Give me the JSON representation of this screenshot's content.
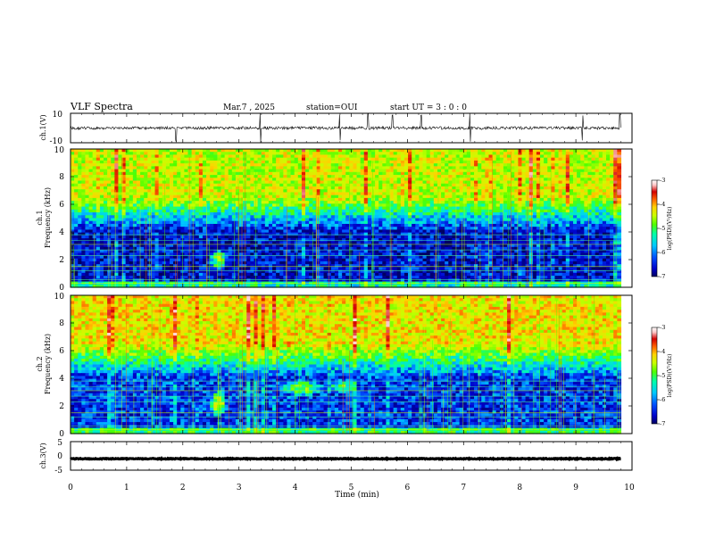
{
  "header": {
    "title": "VLF Spectra",
    "date": "Mar.7 , 2025",
    "station": "station=OUI",
    "start": "start UT =  3 : 0 : 0"
  },
  "chart_data": {
    "type": "spectrogram",
    "x_axis": {
      "label": "Time (min)",
      "range": [
        0,
        10
      ],
      "ticks": [
        0,
        1,
        2,
        3,
        4,
        5,
        6,
        7,
        8,
        9,
        10
      ],
      "tick_labels": [
        "0",
        "1",
        "2",
        "3",
        "4",
        "5",
        "6",
        "7",
        "8",
        "9",
        "10"
      ],
      "data_end": 9.8
    },
    "panels": [
      {
        "id": "ch1-waveform",
        "kind": "waveform",
        "ylabel": "ch.1(V)",
        "ylim": [
          -10,
          10
        ],
        "tick_labels": [
          "10",
          "-10"
        ],
        "baseline": 0,
        "noise_amplitude": 1.0,
        "spike_times": [
          1.88,
          3.38,
          4.8,
          5.3,
          5.73,
          6.25,
          7.12,
          9.12,
          9.78
        ],
        "spike_amplitude": 9
      },
      {
        "id": "ch1-spectrogram",
        "kind": "spectrogram",
        "ylabel_1": "ch.1",
        "ylabel_2": "Frequency (kHz)",
        "ylim": [
          0,
          10
        ],
        "yticks": [
          0,
          2,
          4,
          6,
          8,
          10
        ],
        "tick_labels": [
          "0",
          "2",
          "4",
          "6",
          "8",
          "10"
        ],
        "colorbar": {
          "label": "log(PSD)(V²/Hz)",
          "range": [
            -7,
            -3
          ],
          "ticks": [
            -3,
            -4,
            -5,
            -6,
            -7
          ],
          "tick_labels": [
            "-3",
            "-4",
            "-5",
            "-6",
            "-7"
          ]
        },
        "description_levels": {
          "low_band_kHz": [
            0,
            4
          ],
          "low_band_logpsd": -6.6,
          "high_band_logpsd": -4.8
        }
      },
      {
        "id": "ch2-spectrogram",
        "kind": "spectrogram",
        "ylabel_1": "ch.2",
        "ylabel_2": "Frequency (kHz)",
        "ylim": [
          0,
          10
        ],
        "yticks": [
          0,
          2,
          4,
          6,
          8,
          10
        ],
        "tick_labels": [
          "0",
          "2",
          "4",
          "6",
          "8",
          "10"
        ],
        "colorbar": {
          "label": "log(PSD)(V²/Hz)",
          "range": [
            -7,
            -3
          ],
          "ticks": [
            -3,
            -4,
            -5,
            -6,
            -7
          ],
          "tick_labels": [
            "-3",
            "-4",
            "-5",
            "-6",
            "-7"
          ]
        },
        "description_levels": {
          "low_band_kHz": [
            0,
            4
          ],
          "low_band_logpsd": -6.4,
          "high_band_logpsd": -4.6
        }
      },
      {
        "id": "ch3-waveform",
        "kind": "waveform",
        "ylabel": "ch.3(V)",
        "ylim": [
          -5,
          5
        ],
        "tick_labels": [
          "5",
          "0",
          "-5"
        ],
        "baseline": -1,
        "noise_amplitude": 0.15,
        "spike_times": [],
        "spike_amplitude": 0
      }
    ],
    "colorscale": [
      "#000060",
      "#0000c8",
      "#0050ff",
      "#00c8ff",
      "#00ffaa",
      "#50ff00",
      "#c8ff00",
      "#ffd200",
      "#ff6400",
      "#d20000",
      "#ffc8c8",
      "#ffffff"
    ]
  }
}
